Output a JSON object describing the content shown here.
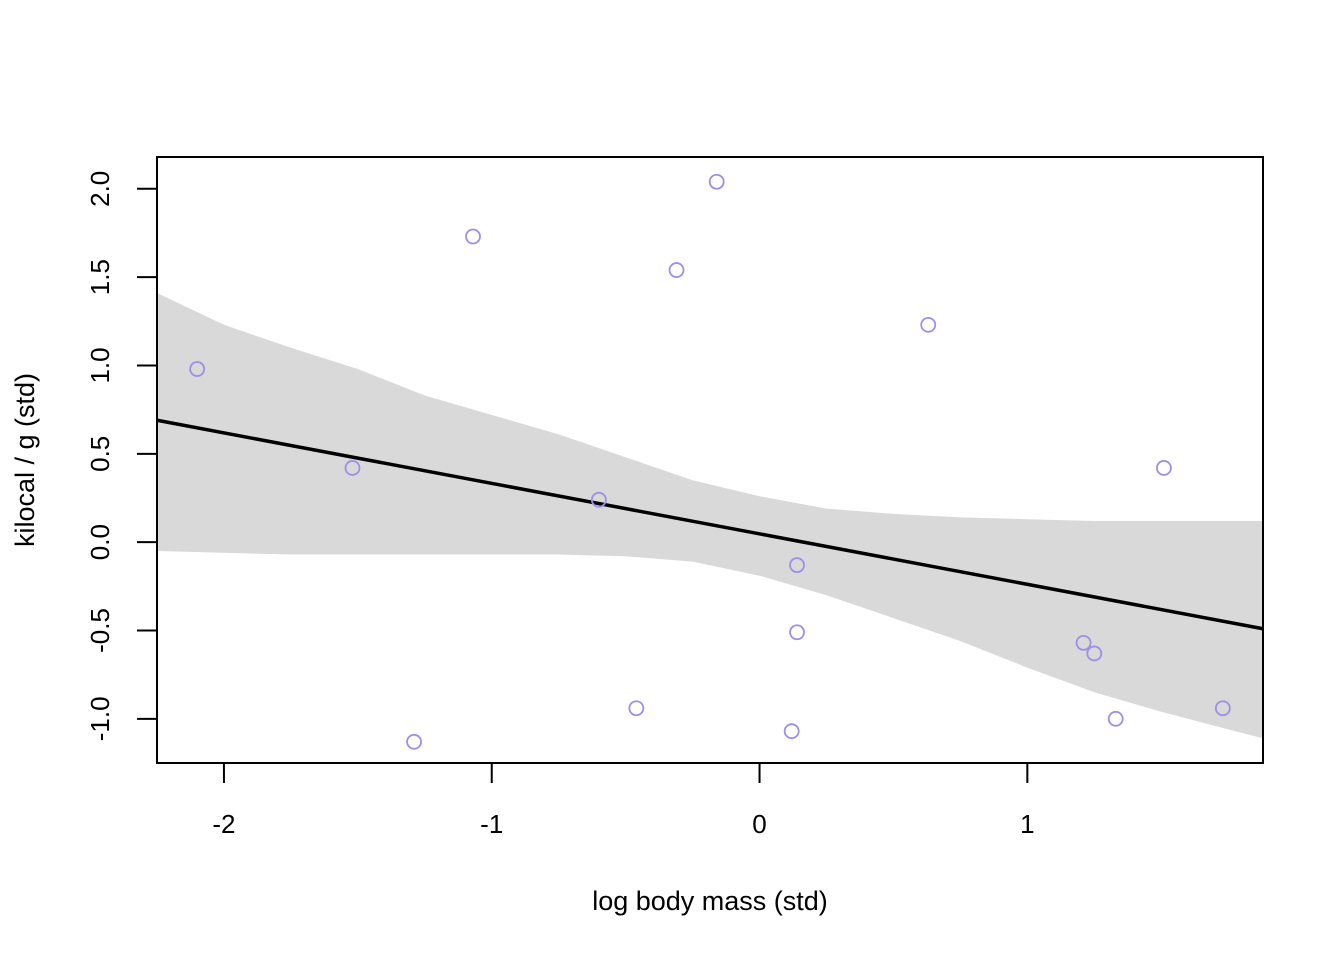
{
  "chart_data": {
    "type": "scatter",
    "title": "",
    "xlabel": "log body mass (std)",
    "ylabel": "kilocal / g (std)",
    "xlim": [
      -2.25,
      1.88
    ],
    "ylim": [
      -1.25,
      2.18
    ],
    "x_ticks": [
      -2,
      -1,
      0,
      1
    ],
    "x_tick_labels": [
      "-2",
      "-1",
      "0",
      "1"
    ],
    "y_ticks": [
      -1.0,
      -0.5,
      0.0,
      0.5,
      1.0,
      1.5,
      2.0
    ],
    "y_tick_labels": [
      "-1.0",
      "-0.5",
      "0.0",
      "0.5",
      "1.0",
      "1.5",
      "2.0"
    ],
    "grid": false,
    "legend": "none",
    "colors": {
      "points": "#9d8fe6",
      "line": "#000000",
      "band": "#d9d9d9",
      "frame": "#000000"
    },
    "series": [
      {
        "kind": "points",
        "x": [
          -2.1,
          -1.52,
          -1.29,
          -1.07,
          -0.6,
          -0.46,
          -0.31,
          -0.16,
          0.12,
          0.14,
          0.14,
          0.63,
          1.21,
          1.25,
          1.33,
          1.51,
          1.73
        ],
        "y": [
          0.98,
          0.42,
          -1.13,
          1.73,
          0.24,
          -0.94,
          1.54,
          2.04,
          -1.07,
          -0.13,
          -0.51,
          1.23,
          -0.57,
          -0.63,
          -1.0,
          0.42,
          -0.94
        ]
      },
      {
        "kind": "line",
        "x": [
          -2.25,
          1.88
        ],
        "y": [
          0.69,
          -0.49
        ]
      },
      {
        "kind": "band",
        "x": [
          -2.25,
          -2.0,
          -1.75,
          -1.5,
          -1.25,
          -1.0,
          -0.75,
          -0.5,
          -0.25,
          0.0,
          0.25,
          0.5,
          0.75,
          1.0,
          1.25,
          1.5,
          1.75,
          1.88
        ],
        "lower": [
          -0.05,
          -0.06,
          -0.07,
          -0.07,
          -0.07,
          -0.07,
          -0.07,
          -0.08,
          -0.11,
          -0.19,
          -0.3,
          -0.43,
          -0.56,
          -0.71,
          -0.85,
          -0.96,
          -1.06,
          -1.11
        ],
        "upper": [
          1.41,
          1.23,
          1.1,
          0.98,
          0.83,
          0.72,
          0.61,
          0.48,
          0.35,
          0.26,
          0.19,
          0.16,
          0.14,
          0.13,
          0.12,
          0.12,
          0.12,
          0.12
        ]
      }
    ]
  }
}
